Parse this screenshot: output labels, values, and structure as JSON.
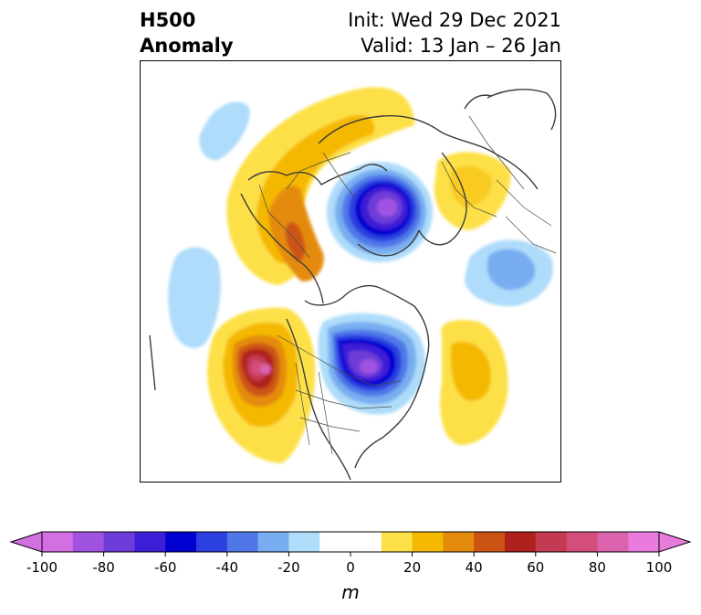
{
  "header": {
    "title_line1": "H500",
    "title_line2": "Anomaly",
    "init_text": "Init: Wed 29 Dec 2021",
    "valid_text": "Valid: 13 Jan – 26 Jan"
  },
  "colorbar": {
    "unit": "m",
    "ticks": [
      -100,
      -80,
      -60,
      -40,
      -20,
      0,
      20,
      40,
      60,
      80,
      100
    ],
    "levels": [
      -100,
      -90,
      -80,
      -70,
      -60,
      -50,
      -40,
      -30,
      -20,
      -10,
      10,
      20,
      30,
      40,
      50,
      60,
      70,
      80,
      90,
      100
    ],
    "colors": [
      "#d36fe3",
      "#a052e0",
      "#6e3cd8",
      "#3c1fd6",
      "#0000d0",
      "#2c3fe0",
      "#4f77e8",
      "#78adf0",
      "#aedcfa",
      "#ffffff",
      "#fde047",
      "#f4b800",
      "#e48b0c",
      "#cc5412",
      "#b0211e",
      "#c43a52",
      "#d44e7c",
      "#db62ad",
      "#e97bdc"
    ],
    "extend_min_color": "#d36fe3",
    "extend_max_color": "#e97bdc"
  },
  "map": {
    "projection": "north-polar-stereographic",
    "region": "Northern Hemisphere"
  }
}
